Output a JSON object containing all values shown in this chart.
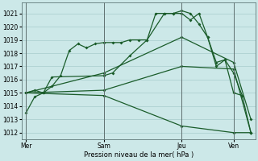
{
  "xlabel": "Pression niveau de la mer( hPa )",
  "bg_color": "#cce8e8",
  "grid_color": "#a8cccc",
  "line_color": "#1a5c2a",
  "ylim": [
    1011.5,
    1021.8
  ],
  "yticks": [
    1012,
    1013,
    1014,
    1015,
    1016,
    1017,
    1018,
    1019,
    1020,
    1021
  ],
  "xtick_labels": [
    "Mer",
    "Sam",
    "Jeu",
    "Ven"
  ],
  "xtick_positions": [
    0,
    18,
    36,
    48
  ],
  "xlim": [
    -1,
    53
  ],
  "vlines": [
    0,
    18,
    36,
    48
  ],
  "line1_x": [
    0,
    2,
    4,
    6,
    8,
    10,
    12,
    14,
    16,
    18,
    20,
    22,
    24,
    26,
    28,
    30,
    32,
    34,
    36,
    38,
    40,
    42,
    44,
    46,
    48,
    50
  ],
  "line1_y": [
    1013.5,
    1014.7,
    1015.0,
    1015.5,
    1016.3,
    1018.2,
    1018.7,
    1018.4,
    1018.7,
    1018.8,
    1018.8,
    1018.8,
    1019.0,
    1019.0,
    1019.0,
    1021.0,
    1021.0,
    1021.0,
    1021.0,
    1020.5,
    1021.0,
    1019.2,
    1017.3,
    1017.5,
    1016.5,
    1014.8
  ],
  "line2_x": [
    0,
    2,
    4,
    6,
    18,
    20,
    24,
    28,
    32,
    34,
    36,
    38,
    40,
    42,
    44,
    46,
    48,
    50,
    52
  ],
  "line2_y": [
    1015.0,
    1015.2,
    1015.0,
    1016.2,
    1016.3,
    1016.5,
    1017.8,
    1019.0,
    1021.0,
    1021.0,
    1021.2,
    1021.0,
    1020.2,
    1019.2,
    1017.0,
    1017.5,
    1015.0,
    1014.8,
    1012.0
  ],
  "line3_x": [
    0,
    18,
    36,
    48,
    52
  ],
  "line3_y": [
    1015.0,
    1016.5,
    1019.2,
    1017.3,
    1013.0
  ],
  "line4_x": [
    0,
    18,
    36,
    48,
    52
  ],
  "line4_y": [
    1015.0,
    1015.2,
    1017.0,
    1016.8,
    1012.0
  ],
  "line5_x": [
    0,
    18,
    36,
    48,
    52
  ],
  "line5_y": [
    1015.0,
    1014.8,
    1012.5,
    1012.0,
    1012.0
  ]
}
